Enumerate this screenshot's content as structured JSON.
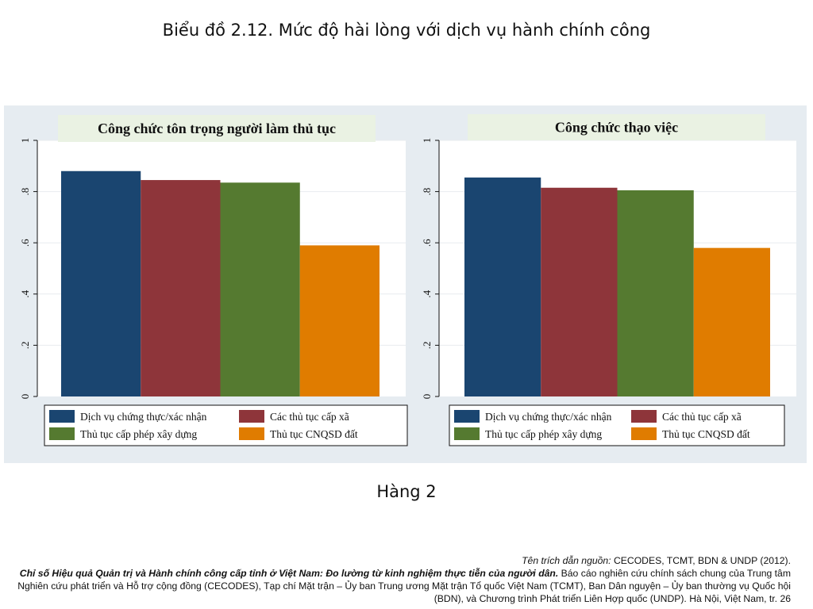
{
  "slide": {
    "title": "Biểu đồ 2.12. Mức độ hài lòng với dịch vụ hành chính công",
    "subtitle": "Hàng 2"
  },
  "citation": {
    "source_prefix": "Tên trích dẫn nguồn:",
    "source_authors": " CECODES, TCMT, BDN & UNDP (2012).",
    "report_title": "Chỉ số Hiệu quả Quản trị và Hành chính công cấp tỉnh ở Việt Nam: Đo lường từ kinh nghiệm thực tiễn của người dân.",
    "report_detail": " Báo cáo nghiên cứu chính sách chung của Trung tâm Nghiên cứu phát triển và Hỗ trợ cộng đồng (CECODES), Tạp chí Mặt trận – Ủy ban Trung ương Mặt trận Tổ quốc Việt Nam (TCMT), Ban Dân nguyện – Ủy ban thường vụ Quốc hội (BDN), và Chương trình Phát triển Liên Hợp quốc (UNDP). Hà Nội, Việt Nam, tr. 26"
  },
  "colors": {
    "series_1": "#1a4570",
    "series_2": "#8e353a",
    "series_3": "#557a30",
    "series_4": "#e07c00",
    "panel_background": "#e6ecf1",
    "facet_title_background": "#eaf2e3"
  },
  "chart_data": [
    {
      "type": "bar",
      "title": "Công chức tôn trọng người làm thủ tục",
      "ylim": [
        0,
        1
      ],
      "yticks": [
        0,
        0.2,
        0.4,
        0.6,
        0.8,
        1
      ],
      "ytick_labels": [
        "0",
        ".2",
        ".4",
        ".6",
        ".8",
        "1"
      ],
      "grid": true,
      "legend_position": "bottom",
      "series": [
        {
          "name": "Dịch vụ chứng thực/xác nhận",
          "value": 0.88
        },
        {
          "name": "Các thủ tục cấp xã",
          "value": 0.845
        },
        {
          "name": "Thủ tục cấp phép xây dựng",
          "value": 0.835
        },
        {
          "name": "Thủ tục CNQSD đất",
          "value": 0.59
        }
      ]
    },
    {
      "type": "bar",
      "title": "Công chức thạo việc",
      "ylim": [
        0,
        1
      ],
      "yticks": [
        0,
        0.2,
        0.4,
        0.6,
        0.8,
        1
      ],
      "ytick_labels": [
        "0",
        ".2",
        ".4",
        ".6",
        ".8",
        "1"
      ],
      "grid": true,
      "legend_position": "bottom",
      "series": [
        {
          "name": "Dịch vụ chứng thực/xác nhận",
          "value": 0.855
        },
        {
          "name": "Các thủ tục cấp xã",
          "value": 0.815
        },
        {
          "name": "Thủ tục cấp phép xây dựng",
          "value": 0.805
        },
        {
          "name": "Thủ tục CNQSD đất",
          "value": 0.58
        }
      ]
    }
  ]
}
